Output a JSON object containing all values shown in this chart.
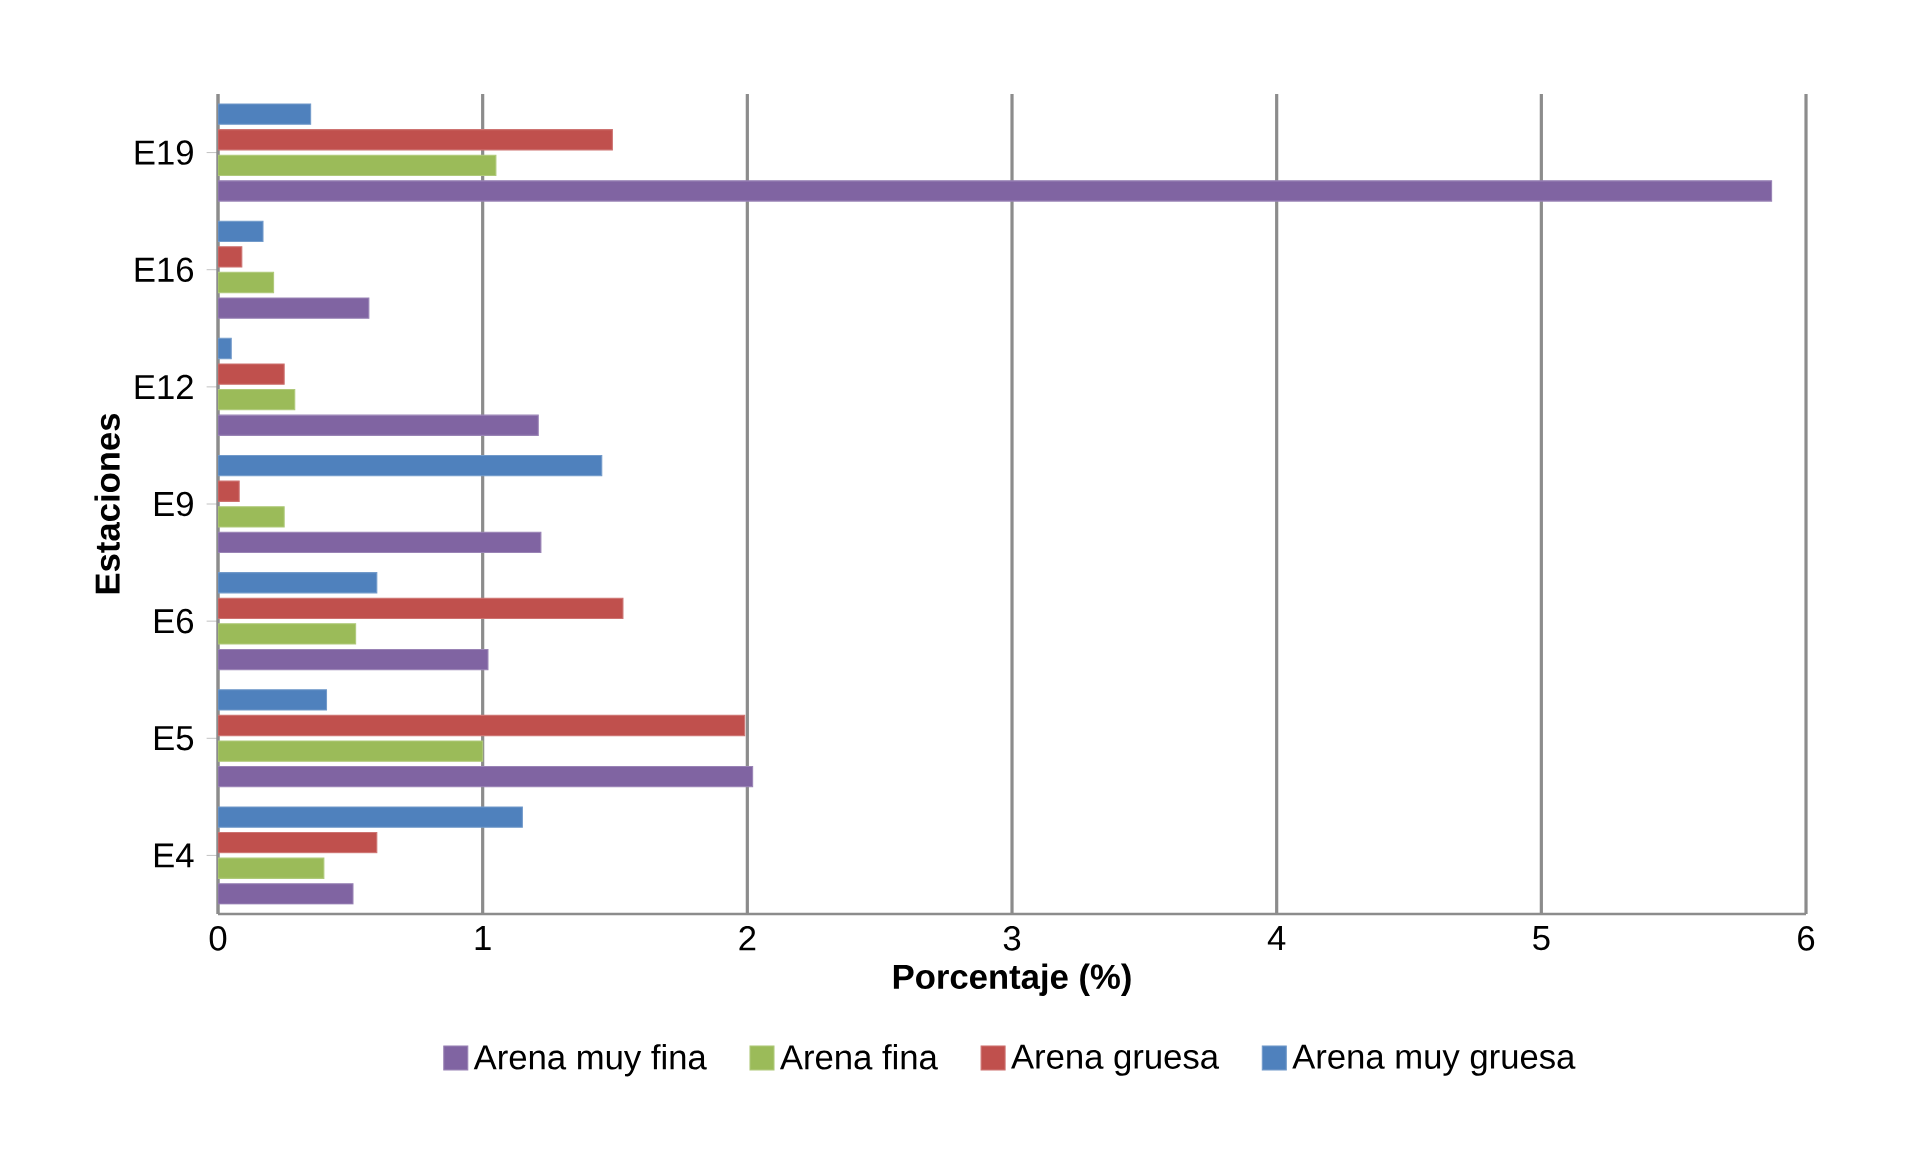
{
  "chart_data": {
    "type": "bar",
    "orientation": "horizontal",
    "xlabel": "Porcentaje (%)",
    "ylabel": "Estaciones",
    "categories": [
      "E19",
      "E16",
      "E12",
      "E9",
      "E6",
      "E5",
      "E4"
    ],
    "series": [
      {
        "name": "Arena muy fina",
        "color": "#8064a2",
        "values": [
          5.87,
          0.57,
          1.21,
          1.22,
          1.02,
          2.02,
          0.51
        ]
      },
      {
        "name": "Arena fina",
        "color": "#9bbb59",
        "values": [
          1.05,
          0.21,
          0.29,
          0.25,
          0.52,
          1.0,
          0.4
        ]
      },
      {
        "name": "Arena gruesa",
        "color": "#c0504d",
        "values": [
          1.49,
          0.09,
          0.25,
          0.08,
          1.53,
          1.99,
          0.6
        ]
      },
      {
        "name": "Arena muy gruesa",
        "color": "#4f81bd",
        "values": [
          0.35,
          0.17,
          0.05,
          1.45,
          0.6,
          0.41,
          1.15
        ]
      }
    ],
    "xlim": [
      0,
      6
    ],
    "xticks": [
      0,
      1,
      2,
      3,
      4,
      5,
      6
    ],
    "grid": "x",
    "legend": "bottom"
  }
}
